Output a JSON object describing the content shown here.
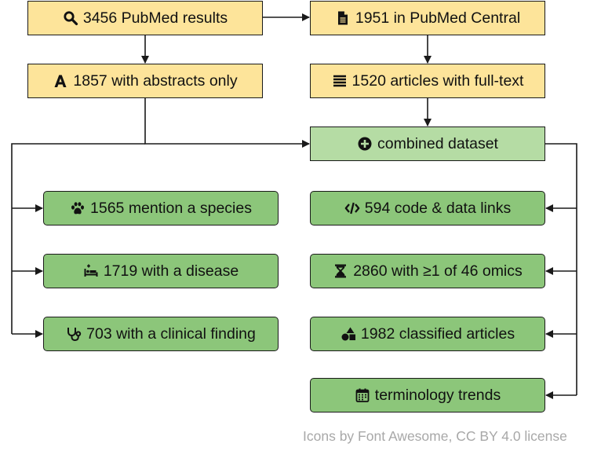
{
  "nodes": {
    "pubmed_results": {
      "label": "3456 PubMed results",
      "icon": "search-icon"
    },
    "pmc": {
      "label": "1951 in PubMed Central",
      "icon": "file-icon"
    },
    "abstracts_only": {
      "label": "1857 with abstracts only",
      "icon": "font-icon"
    },
    "full_text": {
      "label": "1520 articles with full-text",
      "icon": "align-justify-icon"
    },
    "combined": {
      "label": "combined dataset",
      "icon": "plus-circle-icon"
    },
    "species": {
      "label": "1565 mention a species",
      "icon": "paw-icon"
    },
    "code_links": {
      "label": "594 code & data links",
      "icon": "code-icon"
    },
    "disease": {
      "label": "1719 with a disease",
      "icon": "procedures-icon"
    },
    "omics": {
      "label": "2860 with ≥1 of 46 omics",
      "icon": "hourglass-icon"
    },
    "clinical": {
      "label": "703 with a clinical finding",
      "icon": "stethoscope-icon"
    },
    "classified": {
      "label": "1982 classified articles",
      "icon": "shapes-icon"
    },
    "trends": {
      "label": "terminology trends",
      "icon": "calendar-icon"
    }
  },
  "credit": "Icons by Font Awesome, CC BY 4.0 license",
  "colors": {
    "yellow": "#fde49a",
    "light_green": "#b5dca4",
    "green": "#8cc67a",
    "stroke": "#1a1a1a",
    "credit_text": "#a8a8a8"
  }
}
